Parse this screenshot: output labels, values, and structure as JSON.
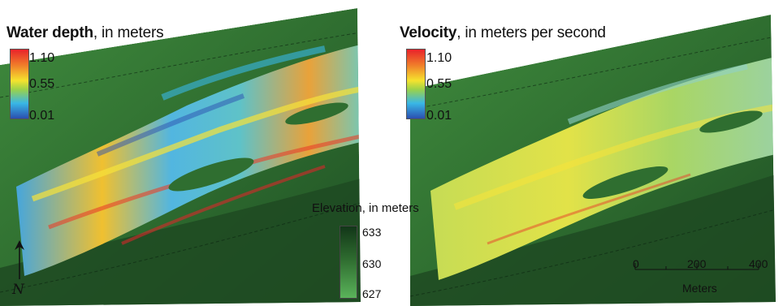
{
  "water_legend": {
    "title_bold": "Water depth",
    "title_rest": ", in meters",
    "ticks": [
      "1.10",
      "0.55",
      "0.01"
    ]
  },
  "velocity_legend": {
    "title_bold": "Velocity",
    "title_rest": ", in meters per second",
    "ticks": [
      "1.10",
      "0.55",
      "0.01"
    ]
  },
  "elevation_legend": {
    "title": "Elevation, in meters",
    "ticks": [
      "633",
      "630",
      "627"
    ]
  },
  "scale_bar": {
    "ticks": [
      "0",
      "200",
      "400"
    ],
    "units": "Meters"
  },
  "north_arrow": {
    "label": "N"
  },
  "colors": {
    "ramp_high": "#e8222a",
    "ramp_mid": "#f5e32e",
    "ramp_low": "#2b4fb0",
    "terrain_dark": "#123618",
    "terrain_light": "#5ab35a"
  }
}
